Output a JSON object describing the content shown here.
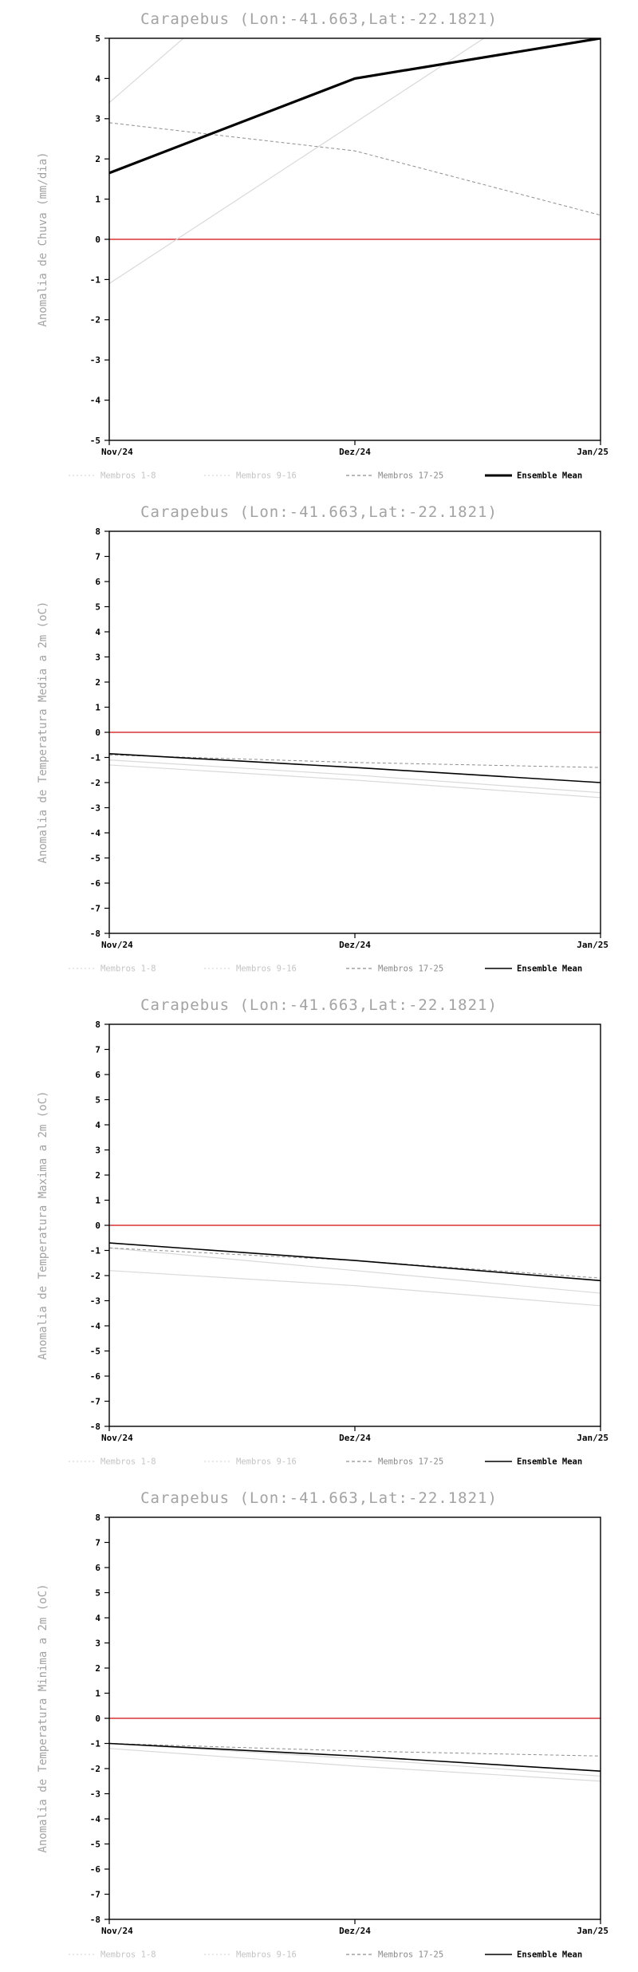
{
  "colors": {
    "title": "#a3a3a3",
    "axis_title": "#a3a3a3",
    "tick_text": "#000000",
    "frame": "#000000",
    "zero_line": "#de5151",
    "member_light": "#d9d9d9",
    "member_mid": "#8f8f8f",
    "mean": "#000000",
    "legend_light_text": "#c4c4c4",
    "legend_mid_text": "#8a8a8a",
    "legend_mean_text": "#000000"
  },
  "chart_data": [
    {
      "type": "line",
      "title": "Carapebus (Lon:-41.663,Lat:-22.1821)",
      "ylabel": "Anomalia de Chuva (mm/dia)",
      "ylim": [
        -5,
        5
      ],
      "ytick_step": 1,
      "grid": false,
      "x_categories": [
        "Nov/24",
        "Dez/24",
        "Jan/25"
      ],
      "zero_line": 0,
      "series": [
        {
          "name": "Membro (1-8)",
          "style": "light",
          "values": [
            3.4,
            8.7,
            14.0
          ]
        },
        {
          "name": "Membro (9-16)",
          "style": "light",
          "values": [
            -1.1,
            2.9,
            6.9
          ]
        },
        {
          "name": "Membros 17-25",
          "style": "dash",
          "values": [
            2.9,
            2.2,
            0.6
          ]
        },
        {
          "name": "Ensemble Mean",
          "style": "mean",
          "width": 3.2,
          "values": [
            1.65,
            4.0,
            5.0
          ]
        }
      ],
      "legend": [
        {
          "label": "Membros 1-8",
          "style": "light-dot"
        },
        {
          "label": "Membros 9-16",
          "style": "light-dot"
        },
        {
          "label": "Membros 17-25",
          "style": "dash"
        },
        {
          "label": "Ensemble Mean",
          "style": "mean"
        }
      ]
    },
    {
      "type": "line",
      "title": "Carapebus (Lon:-41.663,Lat:-22.1821)",
      "ylabel": "Anomalia de Temperatura Media a 2m (oC)",
      "ylim": [
        -8,
        8
      ],
      "ytick_step": 1,
      "grid": false,
      "x_categories": [
        "Nov/24",
        "Dez/24",
        "Jan/25"
      ],
      "zero_line": 0,
      "series": [
        {
          "name": "Membro (1-8)",
          "style": "light",
          "values": [
            -1.3,
            -1.9,
            -2.6
          ]
        },
        {
          "name": "Membro (9-16)",
          "style": "light",
          "values": [
            -1.1,
            -1.7,
            -2.4
          ]
        },
        {
          "name": "Membros 17-25",
          "style": "dash",
          "values": [
            -0.9,
            -1.2,
            -1.4
          ]
        },
        {
          "name": "Ensemble Mean",
          "style": "mean",
          "width": 1.6,
          "values": [
            -0.85,
            -1.4,
            -2.0
          ]
        }
      ],
      "legend": [
        {
          "label": "Membros 1-8",
          "style": "light-dot"
        },
        {
          "label": "Membros 9-16",
          "style": "light-dot"
        },
        {
          "label": "Membros 17-25",
          "style": "dash"
        },
        {
          "label": "Ensemble Mean",
          "style": "mean"
        }
      ]
    },
    {
      "type": "line",
      "title": "Carapebus (Lon:-41.663,Lat:-22.1821)",
      "ylabel": "Anomalia de Temperatura Maxima a 2m (oC)",
      "ylim": [
        -8,
        8
      ],
      "ytick_step": 1,
      "grid": false,
      "x_categories": [
        "Nov/24",
        "Dez/24",
        "Jan/25"
      ],
      "zero_line": 0,
      "series": [
        {
          "name": "Membro (1-8)",
          "style": "light",
          "values": [
            -1.8,
            -2.4,
            -3.2
          ]
        },
        {
          "name": "Membro (9-16)",
          "style": "light",
          "values": [
            -0.9,
            -1.8,
            -2.7
          ]
        },
        {
          "name": "Membros 17-25",
          "style": "dash",
          "values": [
            -0.9,
            -1.4,
            -2.1
          ]
        },
        {
          "name": "Ensemble Mean",
          "style": "mean",
          "width": 1.6,
          "values": [
            -0.7,
            -1.4,
            -2.2
          ]
        }
      ],
      "legend": [
        {
          "label": "Membros 1-8",
          "style": "light-dot"
        },
        {
          "label": "Membros 9-16",
          "style": "light-dot"
        },
        {
          "label": "Membros 17-25",
          "style": "dash"
        },
        {
          "label": "Ensemble Mean",
          "style": "mean"
        }
      ]
    },
    {
      "type": "line",
      "title": "Carapebus (Lon:-41.663,Lat:-22.1821)",
      "ylabel": "Anomalia de Temperatura Minima a 2m (oC)",
      "ylim": [
        -8,
        8
      ],
      "ytick_step": 1,
      "grid": false,
      "x_categories": [
        "Nov/24",
        "Dez/24",
        "Jan/25"
      ],
      "zero_line": 0,
      "series": [
        {
          "name": "Membro (1-8)",
          "style": "light",
          "values": [
            -1.2,
            -1.9,
            -2.5
          ]
        },
        {
          "name": "Membro (9-16)",
          "style": "light",
          "values": [
            -1.0,
            -1.6,
            -2.3
          ]
        },
        {
          "name": "Membros 17-25",
          "style": "dash",
          "values": [
            -1.0,
            -1.3,
            -1.5
          ]
        },
        {
          "name": "Ensemble Mean",
          "style": "mean",
          "width": 1.6,
          "values": [
            -1.0,
            -1.5,
            -2.1
          ]
        }
      ],
      "legend": [
        {
          "label": "Membros 1-8",
          "style": "light-dot"
        },
        {
          "label": "Membros 9-16",
          "style": "light-dot"
        },
        {
          "label": "Membros 17-25",
          "style": "dash"
        },
        {
          "label": "Ensemble Mean",
          "style": "mean"
        }
      ]
    }
  ]
}
